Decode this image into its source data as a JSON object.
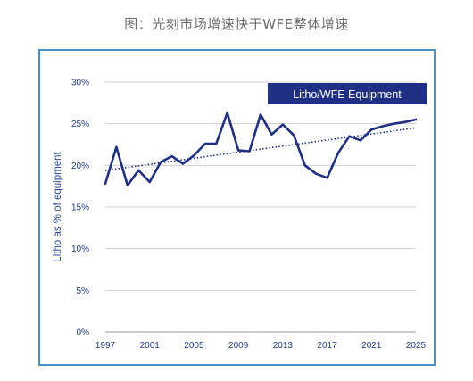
{
  "caption": "图：光刻市场增速快于WFE整体增速",
  "chart_data": {
    "type": "line",
    "title": "",
    "ylabel": "Litho as % of equipment",
    "xlabel": "",
    "xlim": [
      1997,
      2025
    ],
    "ylim": [
      0,
      30
    ],
    "grid": true,
    "x_ticks": [
      "1997",
      "2001",
      "2005",
      "2009",
      "2013",
      "2017",
      "2021",
      "2025"
    ],
    "y_ticks": [
      "0%",
      "5%",
      "10%",
      "15%",
      "20%",
      "25%",
      "30%"
    ],
    "legend": {
      "label": "Litho/WFE Equipment",
      "placement": "top-right"
    },
    "series": [
      {
        "name": "Litho/WFE Equipment",
        "x": [
          1997,
          1998,
          1999,
          2000,
          2001,
          2002,
          2003,
          2004,
          2005,
          2006,
          2007,
          2008,
          2009,
          2010,
          2011,
          2012,
          2013,
          2014,
          2015,
          2016,
          2017,
          2018,
          2019,
          2020,
          2021,
          2022,
          2023,
          2024,
          2025
        ],
        "y": [
          17.8,
          22.2,
          17.6,
          19.4,
          18.0,
          20.4,
          21.1,
          20.2,
          21.2,
          22.6,
          22.6,
          26.3,
          21.8,
          21.7,
          26.1,
          23.7,
          24.9,
          23.6,
          20.0,
          19.0,
          18.5,
          21.5,
          23.5,
          23.0,
          24.3,
          24.7,
          25.0,
          25.2,
          25.5
        ]
      }
    ],
    "trendline": {
      "style": "dotted",
      "x": [
        1997,
        2025
      ],
      "y": [
        19.4,
        24.5
      ]
    },
    "colors": {
      "line": "#1f2f84",
      "legend_bg": "#1f2f84",
      "grid": "#cfcfcf",
      "frame": "#4a90c8"
    }
  }
}
